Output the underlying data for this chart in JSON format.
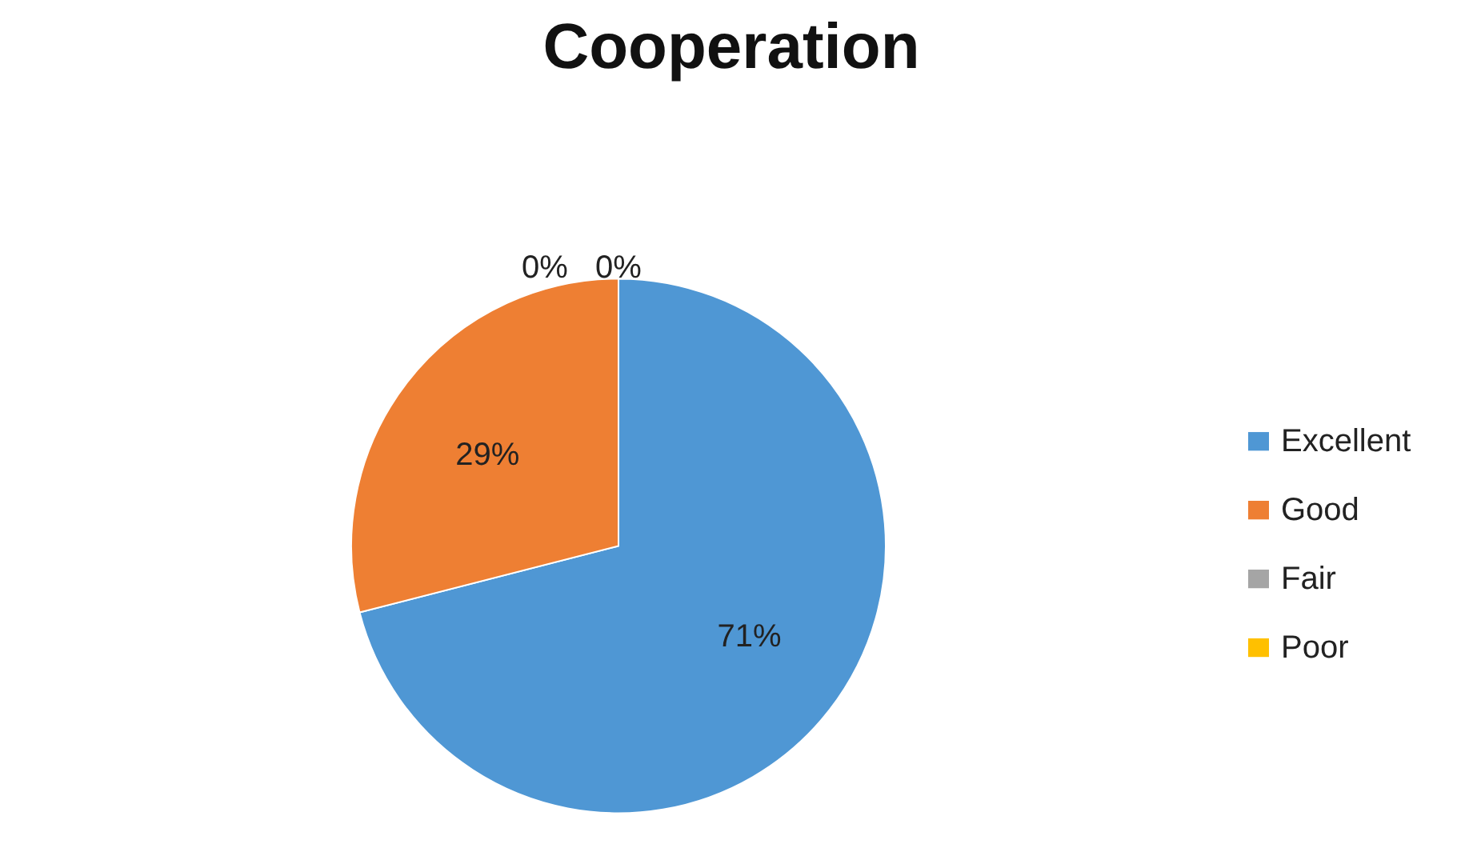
{
  "chart_data": {
    "type": "pie",
    "title": "Cooperation",
    "categories": [
      "Excellent",
      "Good",
      "Fair",
      "Poor"
    ],
    "values": [
      71,
      29,
      0,
      0
    ],
    "value_labels": [
      "71%",
      "29%",
      "0%",
      "0%"
    ],
    "colors": [
      "#4f97d4",
      "#ee7f33",
      "#a5a5a5",
      "#ffc000"
    ],
    "legend": "right"
  }
}
